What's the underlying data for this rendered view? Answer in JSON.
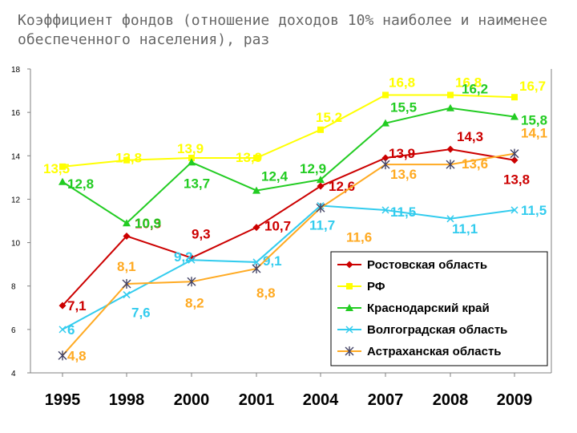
{
  "title": "Коэффициент фондов (отношение доходов 10% наиболее и наименее обеспеченного населения), раз",
  "chart_data": {
    "type": "line",
    "categories": [
      "1995",
      "1998",
      "2000",
      "2001",
      "2004",
      "2007",
      "2008",
      "2009"
    ],
    "ylim": [
      4,
      18
    ],
    "yticks": [
      4,
      6,
      8,
      10,
      12,
      14,
      16,
      18
    ],
    "grid": false,
    "legend_position": "bottom-right",
    "series": [
      {
        "name": "Ростовская область",
        "color": "#cc0000",
        "marker": "diamond",
        "values": [
          7.1,
          10.3,
          9.3,
          10.7,
          12.6,
          13.9,
          14.3,
          13.8
        ],
        "labels": [
          "7,1",
          "10,3",
          "9,3",
          "10,7",
          "12,6",
          "13,9",
          "14,3",
          "13,8"
        ]
      },
      {
        "name": "РФ",
        "color": "#ffff00",
        "marker": "square",
        "values": [
          13.5,
          13.8,
          13.9,
          13.9,
          15.2,
          16.8,
          16.8,
          16.7
        ],
        "labels": [
          "13,5",
          "13,8",
          "13,9",
          "13,9",
          "15,2",
          "16,8",
          "16,8",
          "16,7"
        ]
      },
      {
        "name": "Краснодарский край",
        "color": "#22cc22",
        "marker": "triangle",
        "values": [
          12.8,
          10.9,
          13.7,
          12.4,
          12.9,
          15.5,
          16.2,
          15.8
        ],
        "labels": [
          "12,8",
          "10,9",
          "13,7",
          "12,4",
          "12,9",
          "15,5",
          "16,2",
          "15,8"
        ]
      },
      {
        "name": "Волгоградская область",
        "color": "#33ccee",
        "marker": "x",
        "values": [
          6,
          7.6,
          9.2,
          9.1,
          11.7,
          11.5,
          11.1,
          11.5
        ],
        "labels": [
          "6",
          "7,6",
          "9,2",
          "9,1",
          "11,7",
          "11,5",
          "11,1",
          "11,5"
        ]
      },
      {
        "name": "Астраханская область",
        "color": "#ffaa22",
        "marker": "star",
        "values": [
          4.8,
          8.1,
          8.2,
          8.8,
          11.6,
          13.6,
          13.6,
          14.1
        ],
        "labels": [
          "4,8",
          "8,1",
          "8,2",
          "8,8",
          "11,6",
          "13,6",
          "13,6",
          "14,1"
        ]
      }
    ]
  }
}
